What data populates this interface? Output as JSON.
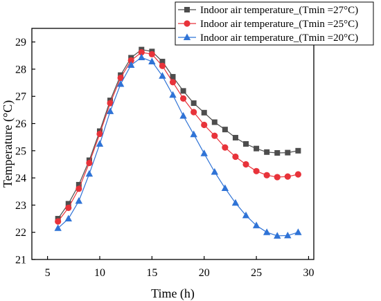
{
  "chart_data": {
    "type": "line",
    "xlabel": "Time (h)",
    "ylabel": "Temperature (°C)",
    "xlim": [
      3.5,
      30.5
    ],
    "ylim": [
      21,
      29.5
    ],
    "xticks": [
      5,
      10,
      15,
      20,
      25,
      30
    ],
    "yticks": [
      21,
      22,
      23,
      24,
      25,
      26,
      27,
      28,
      29
    ],
    "grid": false,
    "legend_position": "top-right",
    "x": [
      6,
      7,
      8,
      9,
      10,
      11,
      12,
      13,
      14,
      15,
      16,
      17,
      18,
      19,
      20,
      21,
      22,
      23,
      24,
      25,
      26,
      27,
      28,
      29
    ],
    "series": [
      {
        "name": "Indoor air temperature_(Tmin =27°C)",
        "color": "#4d4d4d",
        "marker": "square",
        "values": [
          22.5,
          23.05,
          23.75,
          24.65,
          25.72,
          26.85,
          27.78,
          28.42,
          28.72,
          28.65,
          28.28,
          27.72,
          27.2,
          26.75,
          26.4,
          26.05,
          25.78,
          25.48,
          25.25,
          25.08,
          24.95,
          24.92,
          24.93,
          25.0
        ]
      },
      {
        "name": "Indoor air temperature_(Tmin =25°C)",
        "color": "#e8333a",
        "marker": "circle",
        "values": [
          22.4,
          22.9,
          23.6,
          24.55,
          25.62,
          26.75,
          27.68,
          28.32,
          28.62,
          28.55,
          28.12,
          27.52,
          26.92,
          26.42,
          25.95,
          25.55,
          25.12,
          24.78,
          24.5,
          24.25,
          24.1,
          24.03,
          24.05,
          24.13
        ]
      },
      {
        "name": "Indoor air temperature_(Tmin =20°C)",
        "color": "#2f73d6",
        "marker": "triangle",
        "values": [
          22.15,
          22.5,
          23.15,
          24.15,
          25.25,
          26.45,
          27.45,
          28.15,
          28.43,
          28.28,
          27.75,
          27.05,
          26.28,
          25.6,
          24.9,
          24.22,
          23.62,
          23.08,
          22.62,
          22.25,
          22.0,
          21.87,
          21.88,
          22.0
        ]
      }
    ]
  }
}
